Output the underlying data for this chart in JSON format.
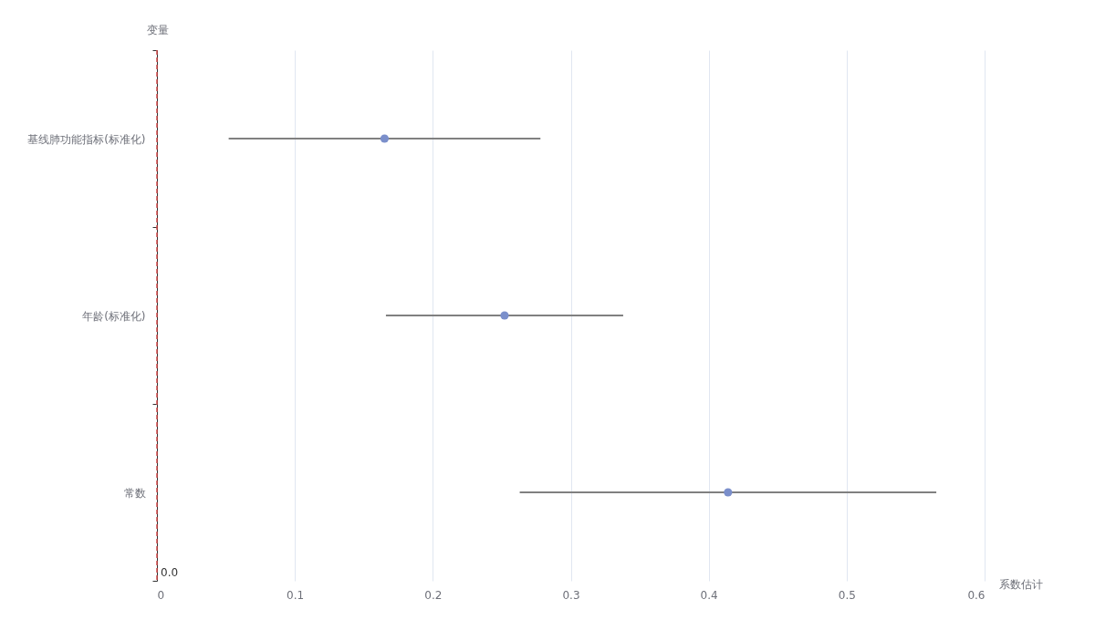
{
  "chart_data": {
    "type": "scatter",
    "orientation": "horizontal",
    "xlabel": "系数估计",
    "ylabel": "变量",
    "categories": [
      "基线肺功能指标(标准化)",
      "年龄(标准化)",
      "常数"
    ],
    "values": [
      0.165,
      0.252,
      0.414
    ],
    "errors": [
      [
        0.052,
        0.278
      ],
      [
        0.166,
        0.338
      ],
      [
        0.263,
        0.565
      ]
    ],
    "color": "#7b8fcb",
    "marker": "circle",
    "xlim": [
      0,
      0.6
    ],
    "xticks": [
      0,
      0.1,
      0.2,
      0.3,
      0.4,
      0.5,
      0.6
    ],
    "grid": "x",
    "ref_lines": [
      {
        "axis": "x",
        "value": 0,
        "label": "0.0",
        "color": "#d14a4a",
        "line_style": "dashed"
      }
    ]
  }
}
